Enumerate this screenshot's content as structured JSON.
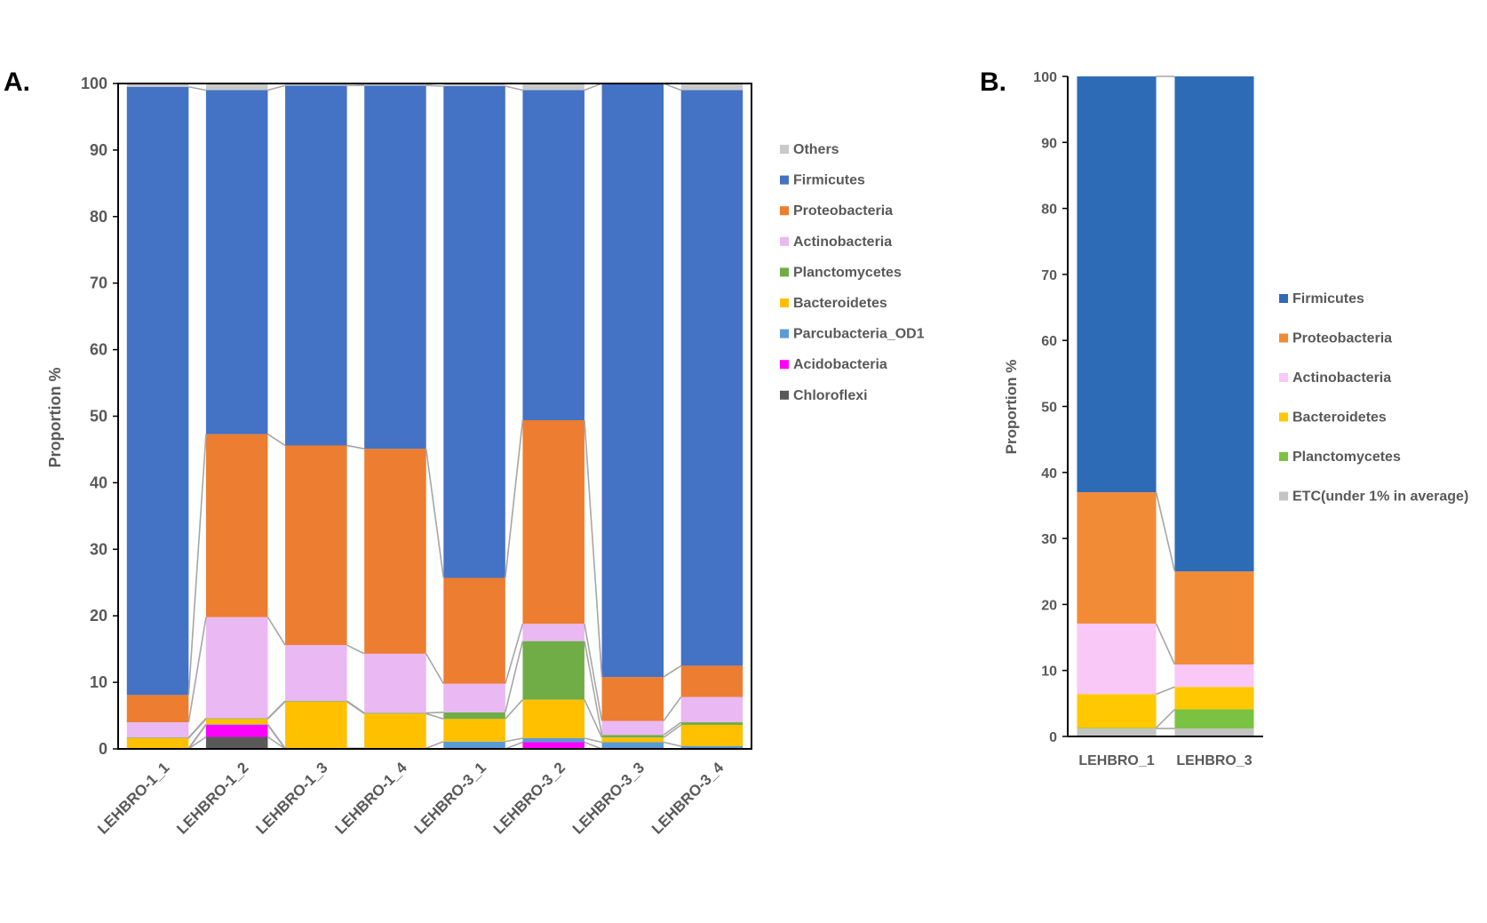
{
  "panels": [
    {
      "label": "A.",
      "ylabel": "Proportion %",
      "ylim": [
        0,
        100
      ],
      "yticks": [
        0,
        10,
        20,
        30,
        40,
        50,
        60,
        70,
        80,
        90,
        100
      ]
    },
    {
      "label": "B.",
      "ylabel": "Proportion %",
      "ylim": [
        0,
        100
      ],
      "yticks": [
        0,
        10,
        20,
        30,
        40,
        50,
        60,
        70,
        80,
        90,
        100
      ]
    }
  ],
  "chart_data": [
    {
      "type": "bar",
      "stacked": true,
      "title": "",
      "xlabel": "",
      "ylabel": "Proportion %",
      "ylim": [
        0,
        100
      ],
      "grid": false,
      "legend_position": "right",
      "categories": [
        "LEHBRO-1_1",
        "LEHBRO-1_2",
        "LEHBRO-1_3",
        "LEHBRO-1_4",
        "LEHBRO-3_1",
        "LEHBRO-3_2",
        "LEHBRO-3_3",
        "LEHBRO-3_4"
      ],
      "series": [
        {
          "name": "Chloroflexi",
          "color": "#595959",
          "values": [
            0,
            1.8,
            0,
            0,
            0,
            0,
            0,
            0
          ]
        },
        {
          "name": "Acidobacteria",
          "color": "#ff00ff",
          "values": [
            0,
            1.8,
            0,
            0,
            0,
            1.0,
            0,
            0
          ]
        },
        {
          "name": "Parcubacteria_OD1",
          "color": "#5b9bd5",
          "values": [
            0.1,
            0.1,
            0.1,
            0.1,
            1.1,
            0.6,
            1.0,
            0.4
          ]
        },
        {
          "name": "Bacteroidetes",
          "color": "#ffc000",
          "values": [
            1.5,
            0.8,
            7.0,
            5.2,
            3.4,
            5.8,
            0.7,
            3.2
          ]
        },
        {
          "name": "Planctomycetes",
          "color": "#70ad47",
          "values": [
            0.1,
            0.1,
            0.1,
            0.1,
            1.0,
            8.8,
            0.4,
            0.4
          ]
        },
        {
          "name": "Actinobacteria",
          "color": "#eab8f2",
          "values": [
            2.3,
            15.2,
            8.4,
            8.9,
            4.3,
            2.6,
            2.1,
            3.8
          ]
        },
        {
          "name": "Proteobacteria",
          "color": "#ed7d31",
          "values": [
            4.1,
            27.5,
            30.0,
            30.8,
            15.9,
            30.6,
            6.6,
            4.7
          ]
        },
        {
          "name": "Firmicutes",
          "color": "#4472c4",
          "values": [
            91.4,
            51.7,
            54.1,
            54.6,
            73.9,
            49.6,
            89.2,
            86.5
          ]
        },
        {
          "name": "Others",
          "color": "#c9c9c9",
          "values": [
            0.5,
            1.0,
            0.3,
            0.2,
            0.4,
            1.0,
            0.0,
            1.0
          ]
        }
      ],
      "legend_order": [
        "Others",
        "Firmicutes",
        "Proteobacteria",
        "Actinobacteria",
        "Planctomycetes",
        "Bacteroidetes",
        "Parcubacteria_OD1",
        "Acidobacteria",
        "Chloroflexi"
      ]
    },
    {
      "type": "bar",
      "stacked": true,
      "title": "",
      "xlabel": "",
      "ylabel": "Proportion %",
      "ylim": [
        0,
        100
      ],
      "grid": false,
      "legend_position": "right",
      "categories": [
        "LEHBRO_1",
        "LEHBRO_3"
      ],
      "series": [
        {
          "name": "ETC(under 1% in average)",
          "color": "#c4c4c4",
          "values": [
            1.2,
            1.2
          ]
        },
        {
          "name": "Planctomycetes",
          "color": "#7cc242",
          "values": [
            0.1,
            2.9
          ]
        },
        {
          "name": "Bacteroidetes",
          "color": "#ffc800",
          "values": [
            5.1,
            3.4
          ]
        },
        {
          "name": "Actinobacteria",
          "color": "#f9c8f7",
          "values": [
            10.7,
            3.4
          ]
        },
        {
          "name": "Proteobacteria",
          "color": "#f28b36",
          "values": [
            19.9,
            14.1
          ]
        },
        {
          "name": "Firmicutes",
          "color": "#2e6bb7",
          "values": [
            63.0,
            75.0
          ]
        }
      ],
      "legend_order": [
        "Firmicutes",
        "Proteobacteria",
        "Actinobacteria",
        "Bacteroidetes",
        "Planctomycetes",
        "ETC(under 1% in average)"
      ]
    }
  ]
}
